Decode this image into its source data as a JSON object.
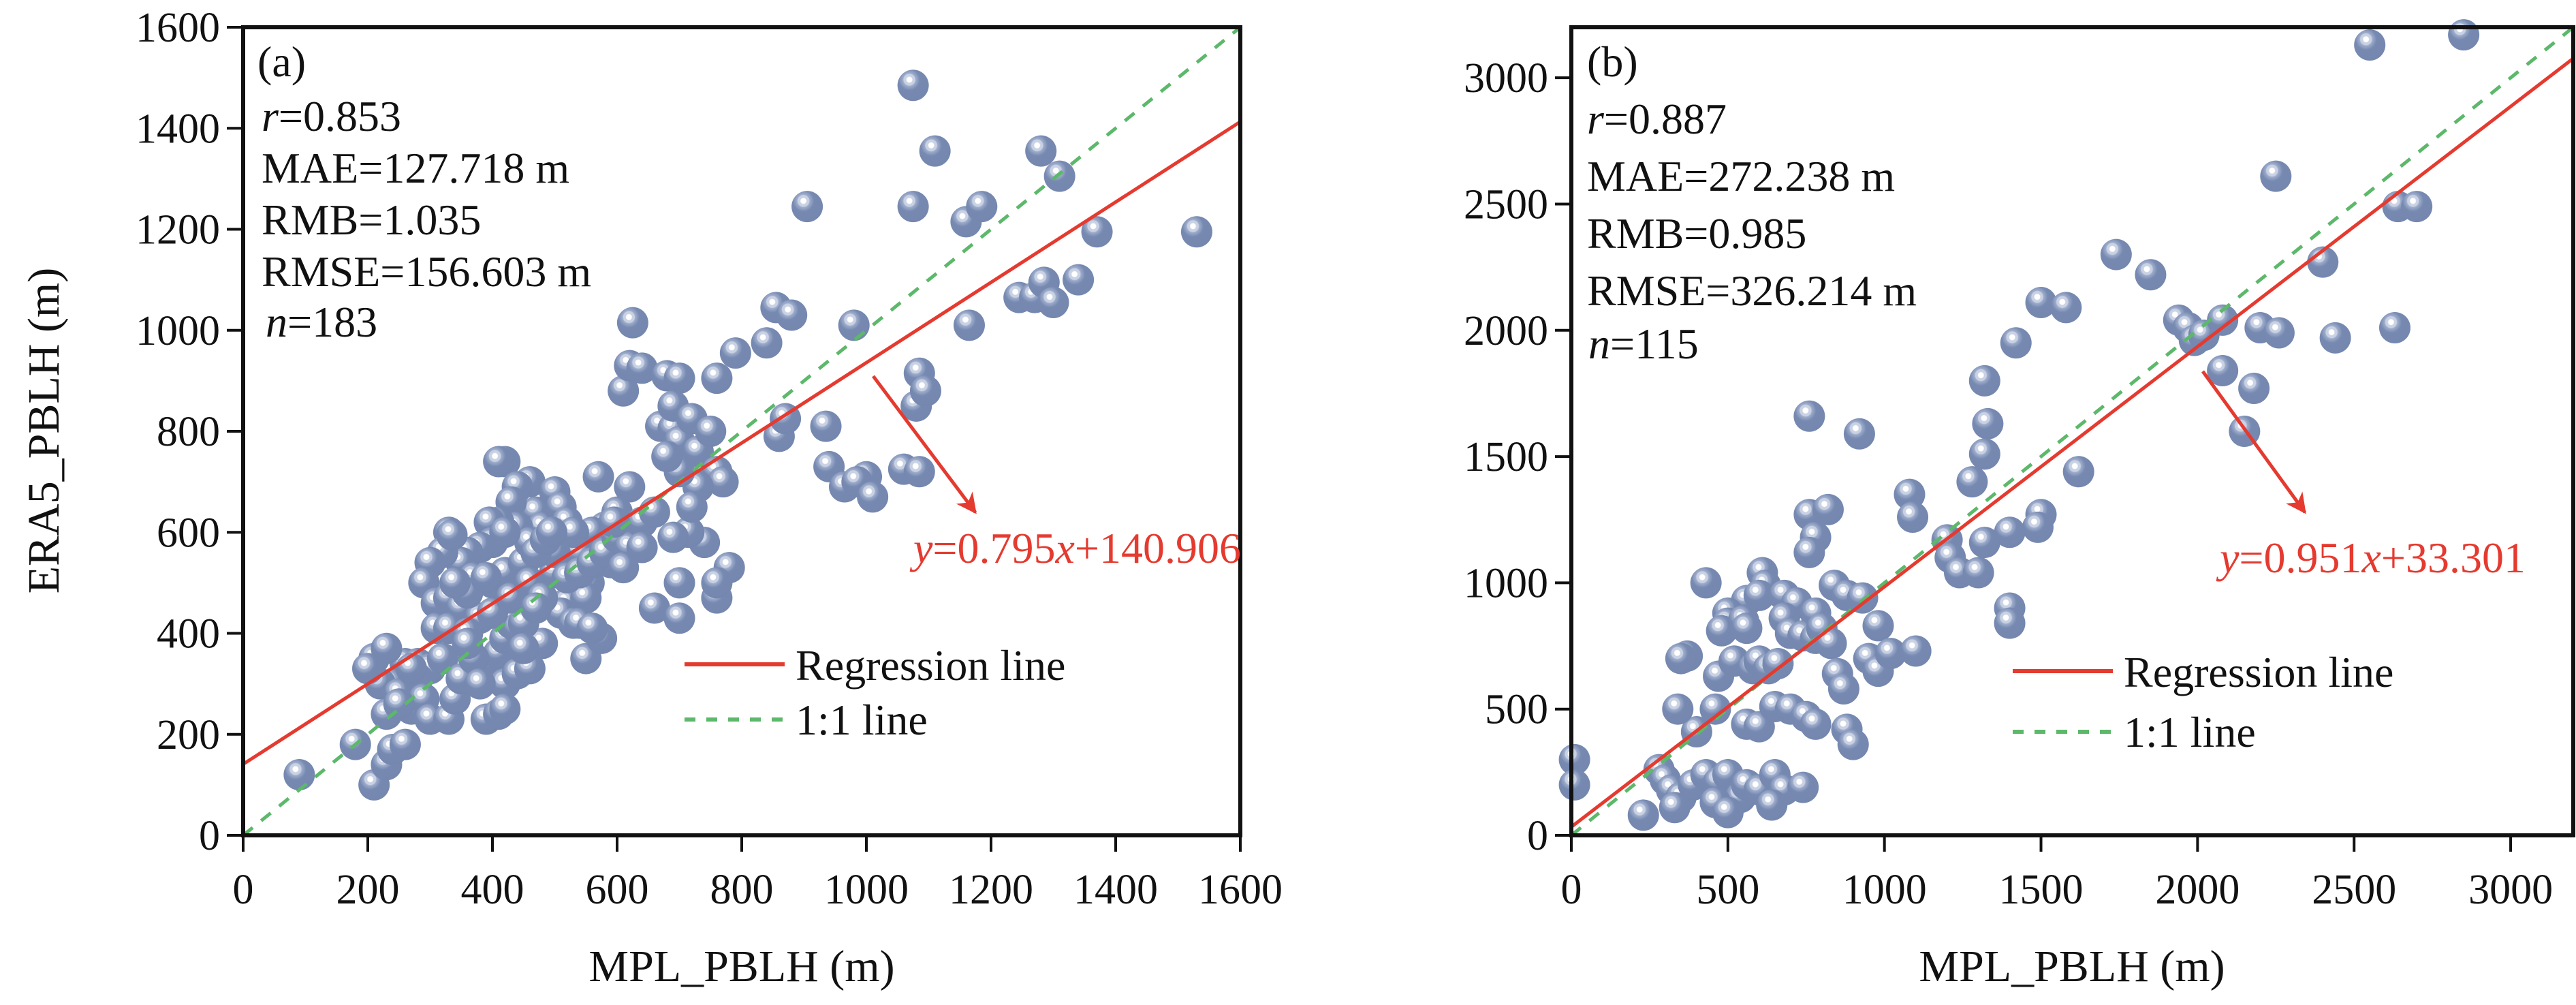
{
  "chart_data": [
    {
      "type": "scatter",
      "panel_label": "(a)",
      "xlabel": "MPL_PBLH (m)",
      "ylabel": "ERA5_PBLH (m)",
      "xlim": [
        0,
        1600
      ],
      "ylim": [
        0,
        1600
      ],
      "xticks": [
        0,
        200,
        400,
        600,
        800,
        1000,
        1200,
        1400,
        1600
      ],
      "yticks": [
        0,
        200,
        400,
        600,
        800,
        1000,
        1200,
        1400,
        1600
      ],
      "grid": false,
      "stats": {
        "r_label": "r",
        "r_value": "=0.853",
        "mae": "MAE=127.718 m",
        "rmb": "RMB=1.035",
        "rmse": "RMSE=156.603 m",
        "n_label": "n",
        "n_value": "=183"
      },
      "regression": {
        "slope": 0.795,
        "intercept": 140.906,
        "equation_parts": [
          "y",
          "=0.795",
          "x",
          "+140.906"
        ]
      },
      "legend": {
        "position": "lower-right",
        "regression_label": "Regression line",
        "identity_label": "1:1 line"
      },
      "points": [
        [
          1075,
          1485
        ],
        [
          1110,
          1355
        ],
        [
          1280,
          1355
        ],
        [
          1310,
          1305
        ],
        [
          905,
          1245
        ],
        [
          1075,
          1245
        ],
        [
          1160,
          1215
        ],
        [
          1185,
          1245
        ],
        [
          1370,
          1195
        ],
        [
          1530,
          1195
        ],
        [
          1245,
          1065
        ],
        [
          1270,
          1065
        ],
        [
          1285,
          1095
        ],
        [
          1300,
          1055
        ],
        [
          1340,
          1100
        ],
        [
          1165,
          1010
        ],
        [
          980,
          1010
        ],
        [
          855,
          1045
        ],
        [
          880,
          1030
        ],
        [
          840,
          975
        ],
        [
          790,
          955
        ],
        [
          760,
          905
        ],
        [
          625,
          1015
        ],
        [
          610,
          880
        ],
        [
          620,
          930
        ],
        [
          640,
          925
        ],
        [
          680,
          910
        ],
        [
          700,
          905
        ],
        [
          670,
          810
        ],
        [
          690,
          805
        ],
        [
          690,
          850
        ],
        [
          700,
          780
        ],
        [
          720,
          825
        ],
        [
          730,
          760
        ],
        [
          750,
          800
        ],
        [
          760,
          720
        ],
        [
          770,
          700
        ],
        [
          730,
          690
        ],
        [
          700,
          720
        ],
        [
          680,
          750
        ],
        [
          860,
          790
        ],
        [
          870,
          825
        ],
        [
          935,
          810
        ],
        [
          940,
          730
        ],
        [
          965,
          690
        ],
        [
          1000,
          710
        ],
        [
          985,
          700
        ],
        [
          1010,
          670
        ],
        [
          1060,
          725
        ],
        [
          1085,
          720
        ],
        [
          1080,
          850
        ],
        [
          1085,
          915
        ],
        [
          1095,
          880
        ],
        [
          740,
          580
        ],
        [
          780,
          530
        ],
        [
          760,
          470
        ],
        [
          700,
          500
        ],
        [
          715,
          600
        ],
        [
          660,
          450
        ],
        [
          700,
          430
        ],
        [
          620,
          690
        ],
        [
          570,
          710
        ],
        [
          580,
          610
        ],
        [
          600,
          640
        ],
        [
          590,
          540
        ],
        [
          560,
          600
        ],
        [
          540,
          560
        ],
        [
          555,
          500
        ],
        [
          520,
          460
        ],
        [
          510,
          440
        ],
        [
          530,
          420
        ],
        [
          550,
          470
        ],
        [
          550,
          350
        ],
        [
          575,
          390
        ],
        [
          480,
          380
        ],
        [
          460,
          700
        ],
        [
          420,
          740
        ],
        [
          410,
          740
        ],
        [
          440,
          690
        ],
        [
          470,
          640
        ],
        [
          480,
          610
        ],
        [
          430,
          660
        ],
        [
          440,
          610
        ],
        [
          410,
          620
        ],
        [
          395,
          620
        ],
        [
          400,
          580
        ],
        [
          380,
          570
        ],
        [
          360,
          560
        ],
        [
          350,
          540
        ],
        [
          370,
          510
        ],
        [
          400,
          500
        ],
        [
          420,
          520
        ],
        [
          450,
          540
        ],
        [
          460,
          580
        ],
        [
          500,
          520
        ],
        [
          500,
          680
        ],
        [
          510,
          650
        ],
        [
          520,
          620
        ],
        [
          530,
          600
        ],
        [
          330,
          600
        ],
        [
          320,
          560
        ],
        [
          300,
          540
        ],
        [
          290,
          500
        ],
        [
          310,
          460
        ],
        [
          330,
          470
        ],
        [
          350,
          450
        ],
        [
          380,
          430
        ],
        [
          360,
          480
        ],
        [
          340,
          500
        ],
        [
          310,
          410
        ],
        [
          330,
          410
        ],
        [
          360,
          400
        ],
        [
          390,
          340
        ],
        [
          410,
          360
        ],
        [
          420,
          390
        ],
        [
          430,
          420
        ],
        [
          440,
          410
        ],
        [
          450,
          420
        ],
        [
          400,
          440
        ],
        [
          430,
          470
        ],
        [
          460,
          500
        ],
        [
          480,
          470
        ],
        [
          470,
          450
        ],
        [
          500,
          560
        ],
        [
          520,
          510
        ],
        [
          540,
          520
        ],
        [
          560,
          540
        ],
        [
          580,
          560
        ],
        [
          600,
          590
        ],
        [
          620,
          570
        ],
        [
          640,
          620
        ],
        [
          660,
          640
        ],
        [
          260,
          340
        ],
        [
          280,
          340
        ],
        [
          300,
          330
        ],
        [
          320,
          350
        ],
        [
          280,
          310
        ],
        [
          260,
          290
        ],
        [
          240,
          300
        ],
        [
          220,
          300
        ],
        [
          210,
          350
        ],
        [
          230,
          370
        ],
        [
          200,
          330
        ],
        [
          250,
          280
        ],
        [
          270,
          250
        ],
        [
          290,
          270
        ],
        [
          300,
          230
        ],
        [
          330,
          230
        ],
        [
          340,
          270
        ],
        [
          390,
          230
        ],
        [
          410,
          240
        ],
        [
          420,
          300
        ],
        [
          440,
          320
        ],
        [
          460,
          330
        ],
        [
          180,
          180
        ],
        [
          210,
          100
        ],
        [
          230,
          140
        ],
        [
          240,
          170
        ],
        [
          260,
          180
        ],
        [
          90,
          120
        ],
        [
          335,
          595
        ],
        [
          470,
          560
        ],
        [
          485,
          585
        ],
        [
          495,
          600
        ],
        [
          540,
          420
        ],
        [
          560,
          410
        ],
        [
          760,
          500
        ],
        [
          720,
          650
        ],
        [
          690,
          590
        ],
        [
          640,
          570
        ],
        [
          610,
          530
        ],
        [
          350,
          310
        ],
        [
          370,
          350
        ],
        [
          380,
          300
        ],
        [
          420,
          250
        ],
        [
          230,
          240
        ],
        [
          250,
          260
        ],
        [
          270,
          330
        ],
        [
          450,
          370
        ],
        [
          420,
          600
        ],
        [
          390,
          510
        ],
        [
          360,
          380
        ],
        [
          595,
          620
        ]
      ]
    },
    {
      "type": "scatter",
      "panel_label": "(b)",
      "xlabel": "MPL_PBLH (m)",
      "ylabel": "",
      "xlim": [
        0,
        3200
      ],
      "ylim": [
        0,
        3200
      ],
      "xticks": [
        0,
        500,
        1000,
        1500,
        2000,
        2500,
        3000
      ],
      "yticks": [
        0,
        500,
        1000,
        1500,
        2000,
        2500,
        3000
      ],
      "grid": false,
      "stats": {
        "r_label": "r",
        "r_value": "=0.887",
        "mae": "MAE=272.238 m",
        "rmb": "RMB=0.985",
        "rmse": "RMSE=326.214 m",
        "n_label": "n",
        "n_value": "=115"
      },
      "regression": {
        "slope": 0.951,
        "intercept": 33.301,
        "equation_parts": [
          "y",
          "=0.951",
          "x",
          "+33.301"
        ]
      },
      "legend": {
        "position": "lower-right",
        "regression_label": "Regression line",
        "identity_label": "1:1 line"
      },
      "points": [
        [
          2550,
          3130
        ],
        [
          2850,
          3170
        ],
        [
          2250,
          2610
        ],
        [
          2640,
          2490
        ],
        [
          2700,
          2490
        ],
        [
          1740,
          2300
        ],
        [
          1850,
          2220
        ],
        [
          2400,
          2270
        ],
        [
          1500,
          2110
        ],
        [
          1580,
          2090
        ],
        [
          1940,
          2040
        ],
        [
          1970,
          2010
        ],
        [
          1990,
          1960
        ],
        [
          2020,
          1980
        ],
        [
          2080,
          2040
        ],
        [
          2200,
          2010
        ],
        [
          2260,
          1990
        ],
        [
          2440,
          1970
        ],
        [
          2630,
          2010
        ],
        [
          1420,
          1950
        ],
        [
          1320,
          1800
        ],
        [
          2080,
          1840
        ],
        [
          2180,
          1770
        ],
        [
          2150,
          1600
        ],
        [
          760,
          1660
        ],
        [
          920,
          1590
        ],
        [
          1330,
          1630
        ],
        [
          1320,
          1510
        ],
        [
          1620,
          1440
        ],
        [
          1280,
          1400
        ],
        [
          1080,
          1350
        ],
        [
          1090,
          1260
        ],
        [
          1500,
          1270
        ],
        [
          1490,
          1220
        ],
        [
          1400,
          1200
        ],
        [
          760,
          1270
        ],
        [
          780,
          1180
        ],
        [
          820,
          1290
        ],
        [
          760,
          1120
        ],
        [
          1200,
          1170
        ],
        [
          1210,
          1100
        ],
        [
          1240,
          1040
        ],
        [
          1300,
          1040
        ],
        [
          1320,
          1160
        ],
        [
          1400,
          900
        ],
        [
          1400,
          840
        ],
        [
          430,
          1000
        ],
        [
          610,
          1040
        ],
        [
          620,
          990
        ],
        [
          560,
          930
        ],
        [
          600,
          950
        ],
        [
          680,
          950
        ],
        [
          720,
          920
        ],
        [
          780,
          880
        ],
        [
          840,
          990
        ],
        [
          880,
          950
        ],
        [
          930,
          940
        ],
        [
          680,
          860
        ],
        [
          700,
          800
        ],
        [
          740,
          790
        ],
        [
          780,
          780
        ],
        [
          800,
          820
        ],
        [
          830,
          760
        ],
        [
          500,
          880
        ],
        [
          500,
          840
        ],
        [
          480,
          810
        ],
        [
          550,
          850
        ],
        [
          560,
          820
        ],
        [
          980,
          830
        ],
        [
          950,
          700
        ],
        [
          980,
          650
        ],
        [
          1020,
          720
        ],
        [
          1100,
          730
        ],
        [
          850,
          640
        ],
        [
          870,
          580
        ],
        [
          370,
          710
        ],
        [
          350,
          700
        ],
        [
          470,
          630
        ],
        [
          520,
          690
        ],
        [
          580,
          660
        ],
        [
          600,
          690
        ],
        [
          630,
          660
        ],
        [
          660,
          680
        ],
        [
          460,
          500
        ],
        [
          400,
          410
        ],
        [
          340,
          500
        ],
        [
          560,
          440
        ],
        [
          600,
          430
        ],
        [
          650,
          510
        ],
        [
          700,
          500
        ],
        [
          750,
          470
        ],
        [
          780,
          440
        ],
        [
          880,
          420
        ],
        [
          900,
          360
        ],
        [
          280,
          260
        ],
        [
          300,
          220
        ],
        [
          320,
          180
        ],
        [
          350,
          150
        ],
        [
          390,
          200
        ],
        [
          430,
          240
        ],
        [
          470,
          210
        ],
        [
          500,
          240
        ],
        [
          540,
          150
        ],
        [
          560,
          200
        ],
        [
          600,
          180
        ],
        [
          650,
          240
        ],
        [
          680,
          180
        ],
        [
          230,
          80
        ],
        [
          330,
          110
        ],
        [
          460,
          130
        ],
        [
          500,
          90
        ],
        [
          640,
          120
        ],
        [
          740,
          190
        ],
        [
          10,
          300
        ],
        [
          10,
          200
        ]
      ]
    }
  ],
  "colors": {
    "marker": "#7689b0",
    "marker_mid": "#a3b1cd",
    "marker_highlight": "#ffffff",
    "regression": "#e53a2f",
    "identity": "#5cb86a",
    "axis": "#111111"
  }
}
